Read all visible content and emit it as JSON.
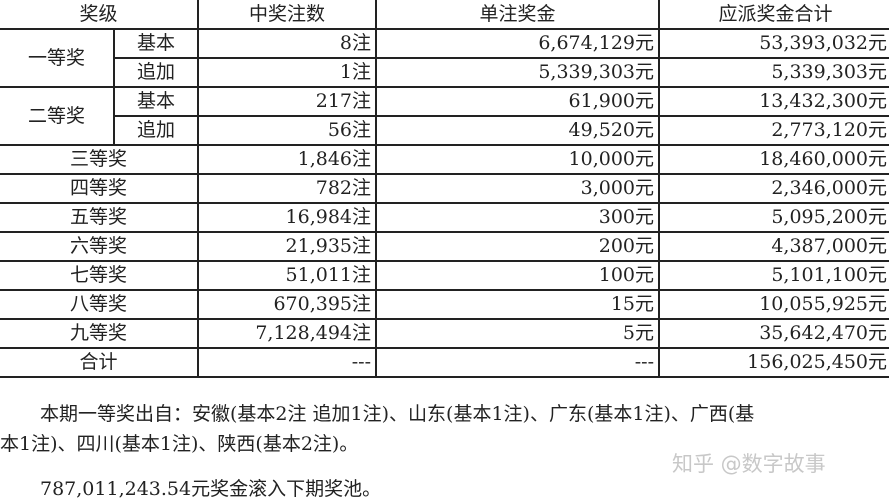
{
  "header": [
    "奖级",
    "中奖注数",
    "单注奖金",
    "应派奖金合计"
  ],
  "split_rows": [
    {
      "grade": "一等奖",
      "sub": [
        {
          "type": "基本",
          "count": "8注",
          "unit": "6,674,129元",
          "total": "53,393,032元"
        },
        {
          "type": "追加",
          "count": "1注",
          "unit": "5,339,303元",
          "total": "5,339,303元"
        }
      ]
    },
    {
      "grade": "二等奖",
      "sub": [
        {
          "type": "基本",
          "count": "217注",
          "unit": "61,900元",
          "total": "13,432,300元"
        },
        {
          "type": "追加",
          "count": "56注",
          "unit": "49,520元",
          "total": "2,773,120元"
        }
      ]
    }
  ],
  "rows": [
    {
      "grade": "三等奖",
      "count": "1,846注",
      "unit": "10,000元",
      "total": "18,460,000元"
    },
    {
      "grade": "四等奖",
      "count": "782注",
      "unit": "3,000元",
      "total": "2,346,000元"
    },
    {
      "grade": "五等奖",
      "count": "16,984注",
      "unit": "300元",
      "total": "5,095,200元"
    },
    {
      "grade": "六等奖",
      "count": "21,935注",
      "unit": "200元",
      "total": "4,387,000元"
    },
    {
      "grade": "七等奖",
      "count": "51,011注",
      "unit": "100元",
      "total": "5,101,100元"
    },
    {
      "grade": "八等奖",
      "count": "670,395注",
      "unit": "15元",
      "total": "10,055,925元"
    },
    {
      "grade": "九等奖",
      "count": "7,128,494注",
      "unit": "5元",
      "total": "35,642,470元"
    },
    {
      "grade": "合计",
      "count": "---",
      "unit": "---",
      "total": "156,025,450元"
    }
  ],
  "notes": {
    "line1": "本期一等奖出自：安徽(基本2注 追加1注)、山东(基本1注)、广东(基本1注)、广西(基",
    "line2": "本1注)、四川(基本1注)、陕西(基本2注)。",
    "line3": "787,011,243.54元奖金滚入下期奖池。"
  },
  "watermark": "知乎 @数字故事"
}
